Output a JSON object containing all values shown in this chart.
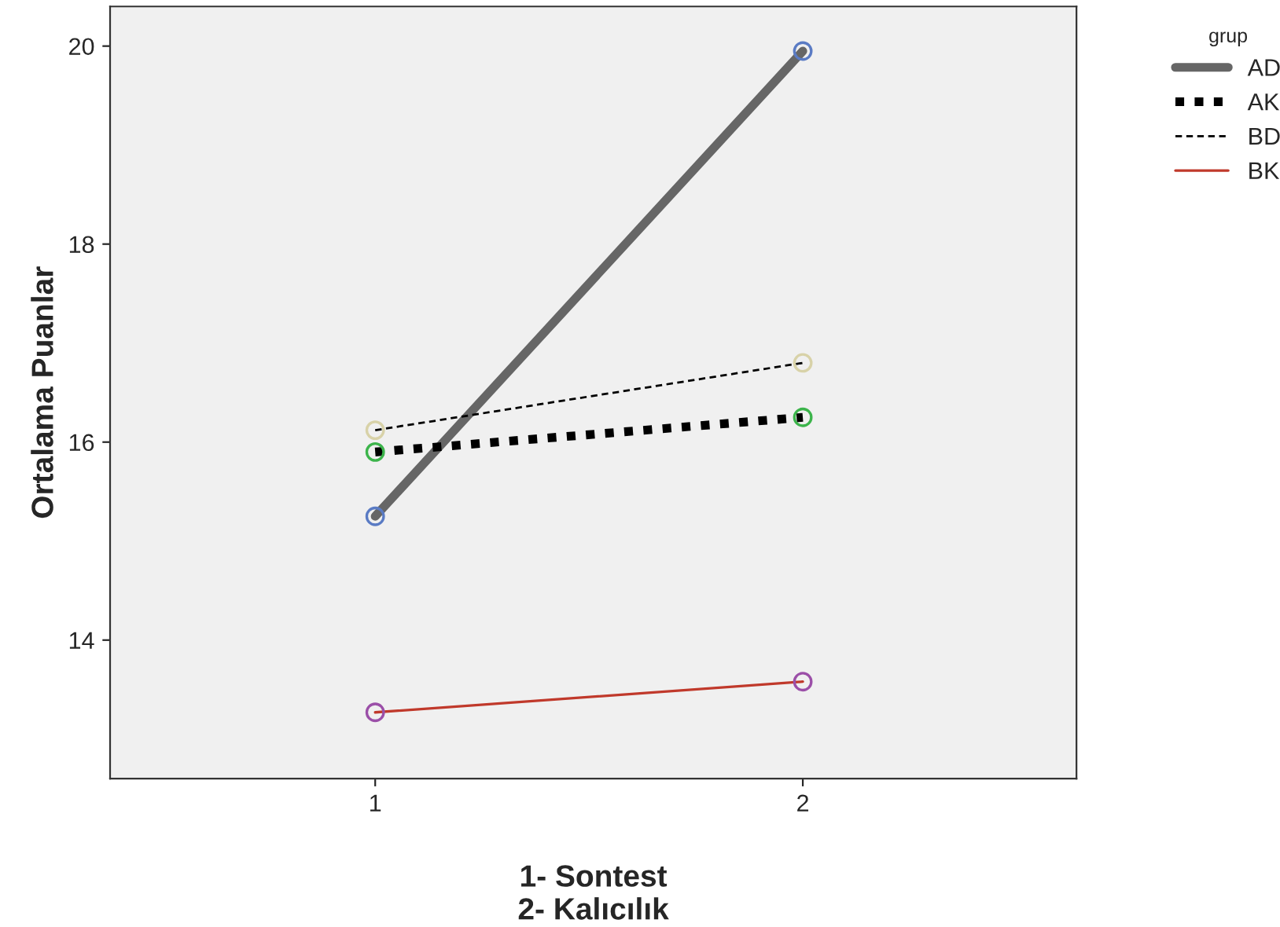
{
  "chart_data": {
    "type": "line",
    "xlabel": "1- Sontest\n2- Kalıcılık",
    "ylabel": "Ortalama Puanlar",
    "legend_title": "grup",
    "legend": "top right",
    "marker": "circle",
    "grid": false,
    "x": [
      1,
      2
    ],
    "xlim": [
      0.38,
      2.64
    ],
    "xticks": [
      1,
      2
    ],
    "ylim": [
      12.6,
      20.4
    ],
    "yticks": [
      14,
      16,
      18,
      20
    ],
    "series": [
      {
        "name": "AD",
        "color": "#666666",
        "colors": [
          "#5a7bc4",
          "#5a7bc4"
        ],
        "line_style": "solid",
        "values": [
          15.25,
          19.95
        ]
      },
      {
        "name": "AK",
        "color": "#000000",
        "colors": [
          "#3cb44b",
          "#3cb44b"
        ],
        "line_style": "dotted",
        "values": [
          15.9,
          16.25
        ]
      },
      {
        "name": "BD",
        "color": "#000000",
        "colors": [
          "#d8d2a8",
          "#d8d2a8"
        ],
        "line_style": "dashed",
        "values": [
          16.12,
          16.8
        ]
      },
      {
        "name": "BK",
        "color": "#c0392b",
        "colors": [
          "#9b4fa8",
          "#9b4fa8"
        ],
        "line_style": "solid",
        "values": [
          13.27,
          13.58
        ]
      }
    ]
  }
}
